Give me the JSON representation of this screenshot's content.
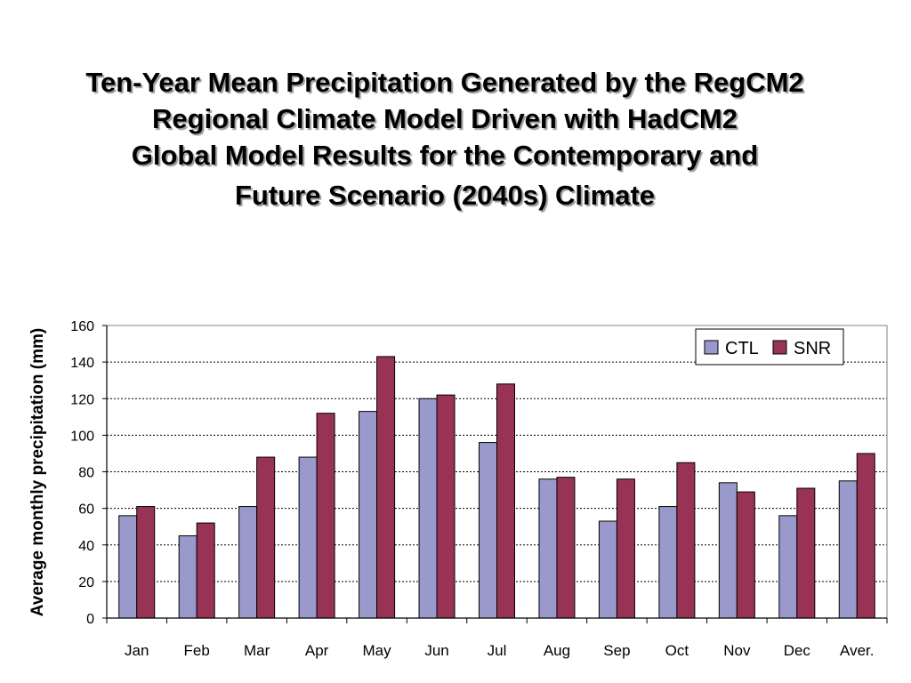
{
  "title": {
    "lines": [
      "Ten-Year Mean Precipitation Generated by the RegCM2",
      "Regional Climate Model Driven with HadCM2",
      "Global Model Results for the Contemporary and",
      "Future Scenario (2040s) Climate"
    ]
  },
  "chart_data": {
    "type": "bar",
    "ylabel": "Average monthly precipitation (mm)",
    "xlabel": "",
    "ylim": [
      0,
      160
    ],
    "yticks": [
      0,
      20,
      40,
      60,
      80,
      100,
      120,
      140,
      160
    ],
    "grid": "horizontal dotted",
    "legend_position": "top-right",
    "categories": [
      "Jan",
      "Feb",
      "Mar",
      "Apr",
      "May",
      "Jun",
      "Jul",
      "Aug",
      "Sep",
      "Oct",
      "Nov",
      "Dec",
      "Aver."
    ],
    "series": [
      {
        "name": "CTL",
        "color": "#9999cc",
        "values": [
          56,
          45,
          61,
          88,
          113,
          120,
          96,
          76,
          53,
          61,
          74,
          56,
          75
        ]
      },
      {
        "name": "SNR",
        "color": "#993355",
        "values": [
          61,
          52,
          88,
          112,
          143,
          122,
          128,
          77,
          76,
          85,
          69,
          71,
          90
        ]
      }
    ]
  }
}
